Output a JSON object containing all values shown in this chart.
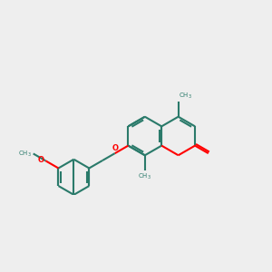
{
  "bg_color": "#eeeeee",
  "bond_color": "#2a7a6a",
  "oxygen_color": "#ff0000",
  "line_width": 1.5,
  "figsize": [
    3.0,
    3.0
  ],
  "dpi": 100
}
